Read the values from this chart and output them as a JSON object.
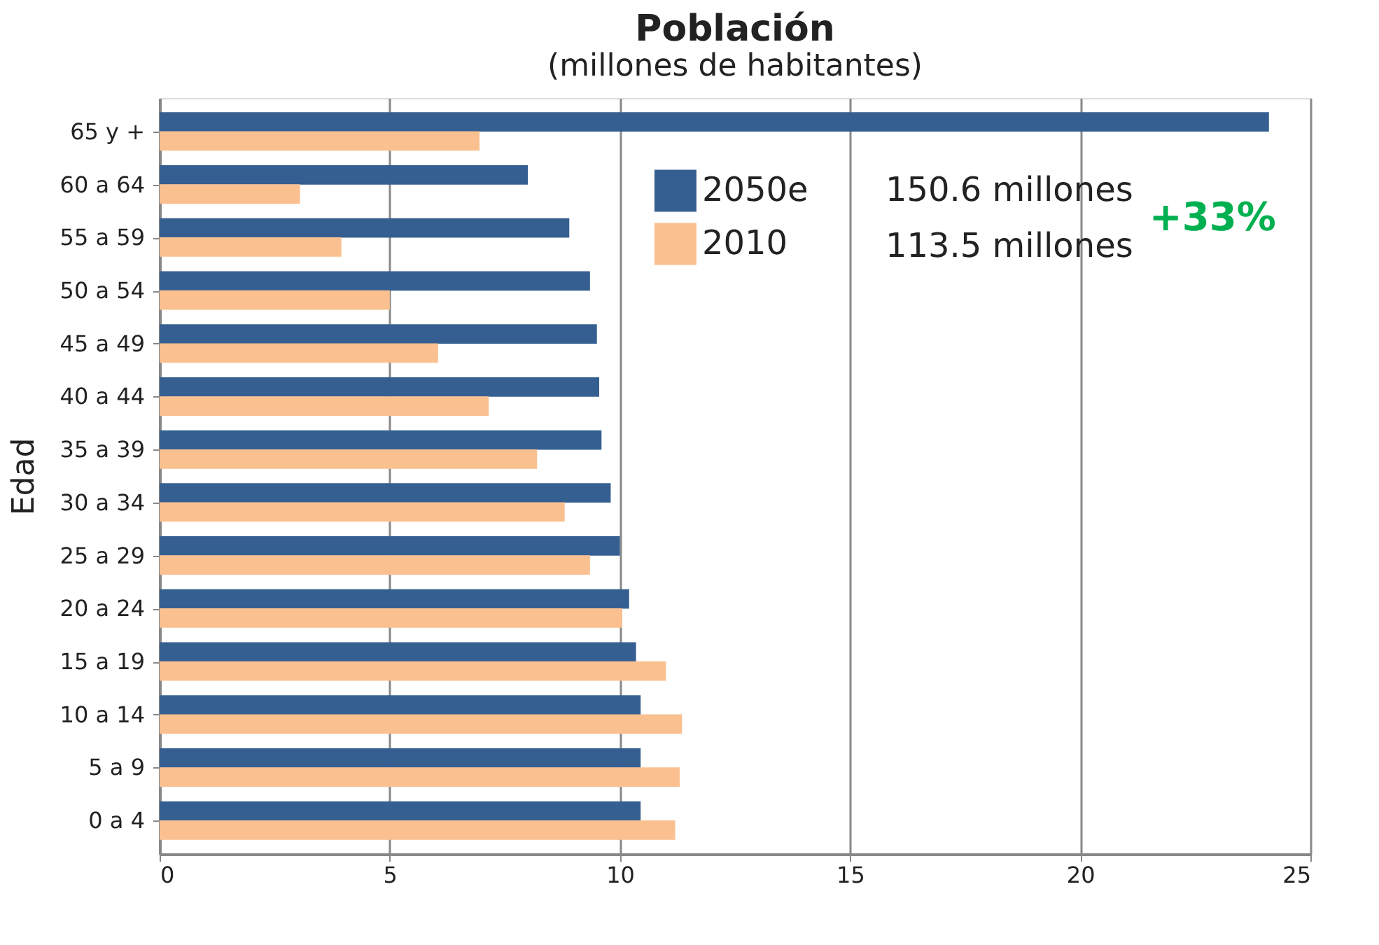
{
  "chart_data": {
    "type": "bar",
    "orientation": "horizontal",
    "title": "Población",
    "subtitle": "(millones de habitantes)",
    "ylabel": "Edad",
    "categories": [
      "65 y +",
      "60 a 64",
      "55 a 59",
      "50 a 54",
      "45 a 49",
      "40 a 44",
      "35 a 39",
      "30 a 34",
      "25 a 29",
      "20 a 24",
      "15 a 19",
      "10 a 14",
      "5 a 9",
      "0 a 4"
    ],
    "series": [
      {
        "name": "2050e",
        "color": "#365f91",
        "values": [
          24.1,
          8.0,
          8.9,
          9.35,
          9.5,
          9.55,
          9.6,
          9.8,
          10.0,
          10.2,
          10.35,
          10.45,
          10.45,
          10.45
        ]
      },
      {
        "name": "2010",
        "color": "#fac090",
        "values": [
          6.95,
          3.05,
          3.95,
          5.0,
          6.05,
          7.15,
          8.2,
          8.8,
          9.35,
          10.05,
          11.0,
          11.35,
          11.3,
          11.2
        ]
      }
    ],
    "xlim": [
      0,
      25
    ],
    "xticks": [
      0,
      5,
      10,
      15,
      20,
      25
    ],
    "grid": "x",
    "legend": "top right",
    "annotations": [
      "150.6 millones",
      "113.5 millones",
      "+33%"
    ]
  }
}
